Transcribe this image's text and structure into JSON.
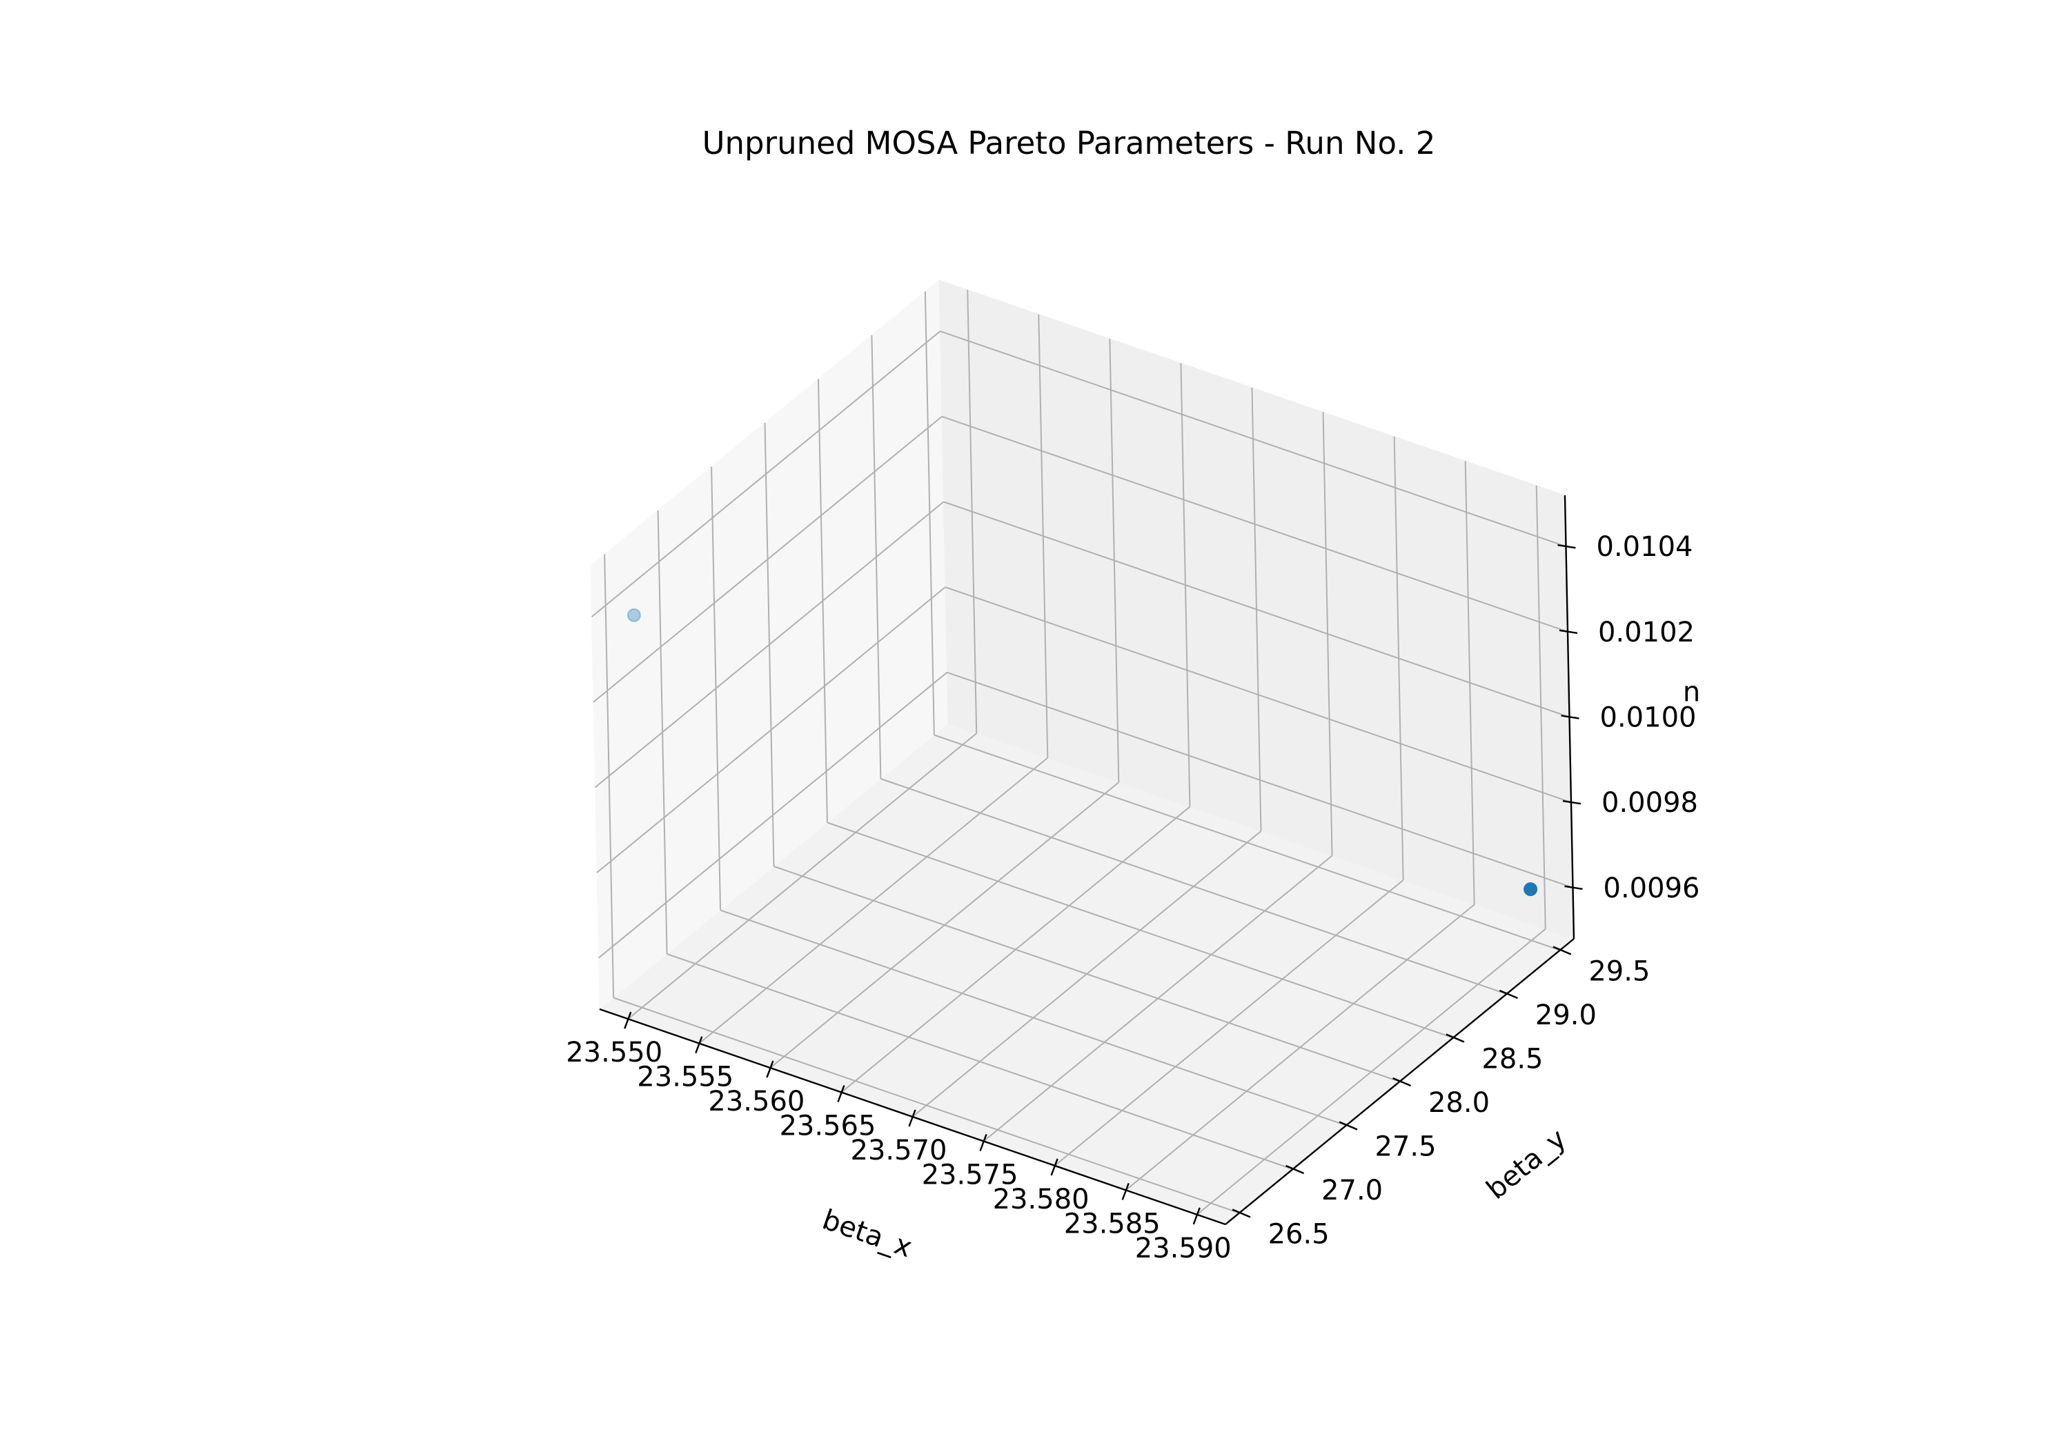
{
  "chart_data": {
    "type": "scatter",
    "projection": "3d",
    "title": "Unpruned MOSA Pareto Parameters - Run No. 2",
    "xlabel": "beta_x",
    "ylabel": "beta_y",
    "zlabel": "n",
    "xlim": [
      23.548,
      23.592
    ],
    "ylim": [
      26.37,
      29.63
    ],
    "zlim": [
      0.00948,
      0.01052
    ],
    "x_ticks": [
      "23.550",
      "23.555",
      "23.560",
      "23.565",
      "23.570",
      "23.575",
      "23.580",
      "23.585",
      "23.590"
    ],
    "y_ticks": [
      "26.5",
      "27.0",
      "27.5",
      "28.0",
      "28.5",
      "29.0",
      "29.5"
    ],
    "z_ticks": [
      "0.0096",
      "0.0098",
      "0.0100",
      "0.0102",
      "0.0104"
    ],
    "grid": true,
    "series": [
      {
        "color": "#1f77b4",
        "points": [
          {
            "x": 23.59,
            "y": 29.5,
            "z": 0.0096
          },
          {
            "x": 23.55,
            "y": 26.5,
            "z": 0.0104
          }
        ]
      }
    ]
  }
}
